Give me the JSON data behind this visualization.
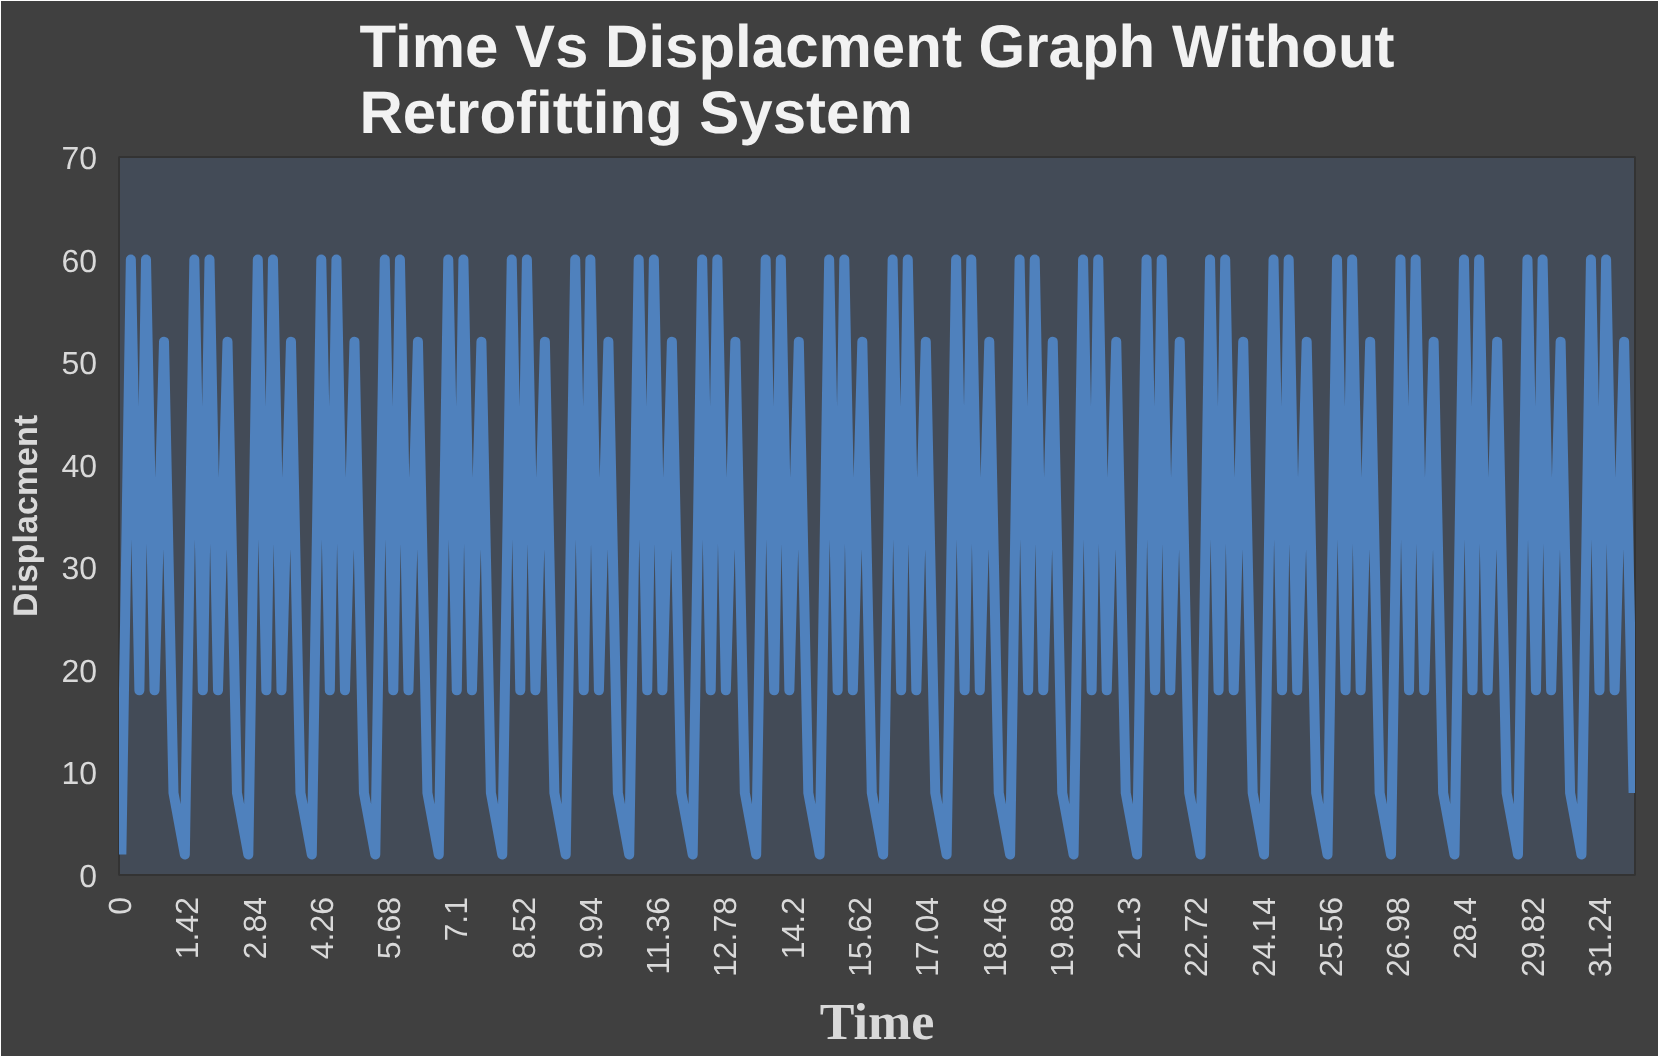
{
  "chart_data": {
    "type": "line",
    "title": "Time Vs Displacment Graph Without Retrofitting System",
    "xlabel": "Time",
    "ylabel": "Displacment",
    "x": [
      0.05,
      0.25,
      0.43,
      0.57,
      0.75,
      0.95,
      1.15,
      1.39,
      1.59,
      1.77,
      1.91,
      2.09,
      2.29,
      2.49,
      2.73,
      2.93,
      3.11,
      3.25,
      3.43,
      3.63,
      3.83,
      4.07,
      4.27,
      4.45,
      4.59,
      4.77,
      4.97,
      5.17,
      5.41,
      5.61,
      5.79,
      5.93,
      6.11,
      6.31,
      6.51,
      6.75,
      6.95,
      7.13,
      7.27,
      7.45,
      7.65,
      7.85,
      8.09,
      8.29,
      8.47,
      8.61,
      8.79,
      8.99,
      9.19,
      9.43,
      9.63,
      9.81,
      9.95,
      10.13,
      10.33,
      10.53,
      10.77,
      10.97,
      11.15,
      11.29,
      11.47,
      11.67,
      11.87,
      12.11,
      12.31,
      12.49,
      12.63,
      12.81,
      13.01,
      13.21,
      13.45,
      13.65,
      13.83,
      13.97,
      14.15,
      14.35,
      14.55,
      14.79,
      14.99,
      15.17,
      15.31,
      15.49,
      15.69,
      15.89,
      16.13,
      16.33,
      16.51,
      16.65,
      16.83,
      17.03,
      17.23,
      17.47,
      17.67,
      17.85,
      17.99,
      18.17,
      18.37,
      18.57,
      18.81,
      19.01,
      19.19,
      19.33,
      19.51,
      19.71,
      19.91,
      20.15,
      20.35,
      20.53,
      20.67,
      20.85,
      21.05,
      21.25,
      21.49,
      21.69,
      21.87,
      22.01,
      22.19,
      22.39,
      22.59,
      22.83,
      23.03,
      23.21,
      23.35,
      23.53,
      23.73,
      23.93,
      24.17,
      24.37,
      24.55,
      24.69,
      24.87,
      25.07,
      25.27,
      25.51,
      25.71,
      25.89,
      26.03,
      26.21,
      26.41,
      26.61,
      26.85,
      27.05,
      27.23,
      27.37,
      27.55,
      27.75,
      27.95,
      28.19,
      28.39,
      28.57,
      28.71,
      28.89,
      29.09,
      29.29,
      29.53,
      29.73,
      29.91,
      30.05,
      30.23,
      30.43,
      30.63,
      30.87,
      31.07,
      31.25,
      31.39,
      31.57,
      31.77,
      31.97
    ],
    "series": [
      {
        "color": "#4f81bd",
        "values": [
          2,
          60,
          18,
          60,
          18,
          52,
          8,
          2,
          60,
          18,
          60,
          18,
          52,
          8,
          2,
          60,
          18,
          60,
          18,
          52,
          8,
          2,
          60,
          18,
          60,
          18,
          52,
          8,
          2,
          60,
          18,
          60,
          18,
          52,
          8,
          2,
          60,
          18,
          60,
          18,
          52,
          8,
          2,
          60,
          18,
          60,
          18,
          52,
          8,
          2,
          60,
          18,
          60,
          18,
          52,
          8,
          2,
          60,
          18,
          60,
          18,
          52,
          8,
          2,
          60,
          18,
          60,
          18,
          52,
          8,
          2,
          60,
          18,
          60,
          18,
          52,
          8,
          2,
          60,
          18,
          60,
          18,
          52,
          8,
          2,
          60,
          18,
          60,
          18,
          52,
          8,
          2,
          60,
          18,
          60,
          18,
          52,
          8,
          2,
          60,
          18,
          60,
          18,
          52,
          8,
          2,
          60,
          18,
          60,
          18,
          52,
          8,
          2,
          60,
          18,
          60,
          18,
          52,
          8,
          2,
          60,
          18,
          60,
          18,
          52,
          8,
          2,
          60,
          18,
          60,
          18,
          52,
          8,
          2,
          60,
          18,
          60,
          18,
          52,
          8,
          2,
          60,
          18,
          60,
          18,
          52,
          8,
          2,
          60,
          18,
          60,
          18,
          52,
          8,
          2,
          60,
          18,
          60,
          18,
          52,
          8,
          2,
          60,
          18,
          60,
          18,
          52,
          8
        ]
      }
    ],
    "xlim": [
      0,
      32
    ],
    "ylim": [
      0,
      70
    ],
    "xticks": [
      0,
      1.42,
      2.84,
      4.26,
      5.68,
      7.1,
      8.52,
      9.94,
      11.36,
      12.78,
      14.2,
      15.62,
      17.04,
      18.46,
      19.88,
      21.3,
      22.72,
      24.14,
      25.56,
      26.98,
      28.4,
      29.82,
      31.24
    ],
    "yticks": [
      0,
      10,
      20,
      30,
      40,
      50,
      60,
      70
    ],
    "grid": false
  }
}
